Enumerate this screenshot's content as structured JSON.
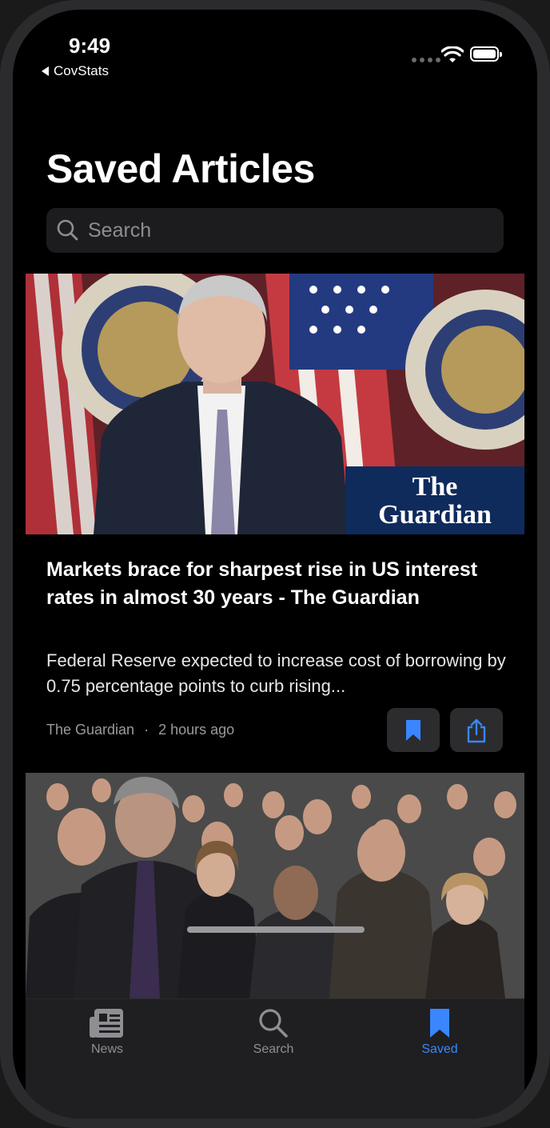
{
  "status_bar": {
    "time": "9:49",
    "back_app": "CovStats"
  },
  "header": {
    "title": "Saved Articles"
  },
  "search": {
    "placeholder": "Search"
  },
  "article": {
    "image_logo": "The Guardian",
    "headline": "Markets brace for sharpest rise in US interest rates in almost 30 years - The Guardian",
    "description": "Federal Reserve expected to increase cost of borrowing by 0.75 percentage points to curb rising...",
    "source": "The Guardian",
    "separator": "·",
    "time_ago": "2 hours ago"
  },
  "tabbar": {
    "tabs": [
      {
        "label": "News",
        "icon": "newspaper-icon",
        "active": false
      },
      {
        "label": "Search",
        "icon": "search-icon",
        "active": false
      },
      {
        "label": "Saved",
        "icon": "bookmark-icon",
        "active": true
      }
    ]
  },
  "colors": {
    "accent": "#3a86ff",
    "background": "#000000",
    "inactive": "#8e8e93"
  }
}
